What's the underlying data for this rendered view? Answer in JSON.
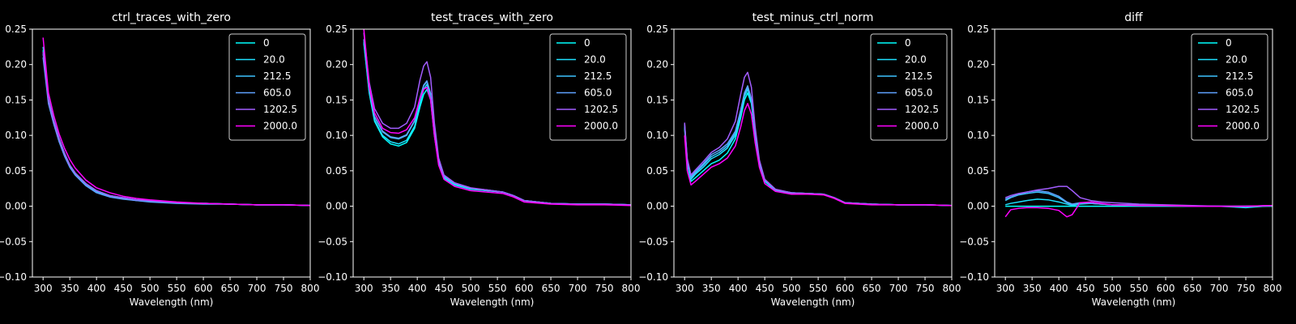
{
  "figure": {
    "background": "#000000",
    "foreground": "#ffffff",
    "series_colors": [
      "#00ffff",
      "#1ee1ff",
      "#3dc2ff",
      "#5ea1ff",
      "#a25dff",
      "#ff00ff"
    ]
  },
  "chart_data": [
    {
      "type": "line",
      "title": "ctrl_traces_with_zero",
      "xlabel": "Wavelength (nm)",
      "ylabel": "",
      "xlim": [
        280,
        800
      ],
      "ylim": [
        -0.1,
        0.25
      ],
      "xticks": [
        300,
        350,
        400,
        450,
        500,
        550,
        600,
        650,
        700,
        750,
        800
      ],
      "yticks": [
        -0.1,
        -0.05,
        0.0,
        0.05,
        0.1,
        0.15,
        0.2,
        0.25
      ],
      "ytick_labels": [
        "−0.10",
        "−0.05",
        "0.00",
        "0.05",
        "0.10",
        "0.15",
        "0.20",
        "0.25"
      ],
      "xtick_labels": [
        "300",
        "350",
        "400",
        "450",
        "500",
        "550",
        "600",
        "650",
        "700",
        "750",
        "800"
      ],
      "grid": false,
      "legend": "upper right",
      "x": [
        300,
        310,
        320,
        330,
        340,
        350,
        360,
        380,
        400,
        425,
        450,
        475,
        500,
        550,
        600,
        650,
        700,
        750,
        800
      ],
      "series": [
        {
          "name": "0",
          "values": [
            0.22,
            0.15,
            0.12,
            0.095,
            0.075,
            0.058,
            0.047,
            0.032,
            0.022,
            0.015,
            0.012,
            0.009,
            0.008,
            0.005,
            0.004,
            0.003,
            0.002,
            0.002,
            0.001
          ]
        },
        {
          "name": "20.0",
          "values": [
            0.225,
            0.152,
            0.121,
            0.096,
            0.075,
            0.058,
            0.047,
            0.031,
            0.021,
            0.014,
            0.011,
            0.009,
            0.007,
            0.005,
            0.004,
            0.003,
            0.002,
            0.002,
            0.001
          ]
        },
        {
          "name": "212.5",
          "values": [
            0.215,
            0.148,
            0.118,
            0.093,
            0.073,
            0.056,
            0.045,
            0.03,
            0.02,
            0.014,
            0.011,
            0.008,
            0.007,
            0.005,
            0.004,
            0.003,
            0.002,
            0.002,
            0.001
          ]
        },
        {
          "name": "605.0",
          "values": [
            0.21,
            0.145,
            0.116,
            0.091,
            0.071,
            0.055,
            0.044,
            0.029,
            0.019,
            0.013,
            0.01,
            0.008,
            0.006,
            0.004,
            0.003,
            0.003,
            0.002,
            0.002,
            0.001
          ]
        },
        {
          "name": "1202.5",
          "values": [
            0.218,
            0.15,
            0.12,
            0.095,
            0.075,
            0.058,
            0.047,
            0.032,
            0.022,
            0.015,
            0.012,
            0.009,
            0.008,
            0.005,
            0.004,
            0.003,
            0.002,
            0.002,
            0.001
          ]
        },
        {
          "name": "2000.0",
          "values": [
            0.238,
            0.16,
            0.128,
            0.102,
            0.082,
            0.066,
            0.054,
            0.037,
            0.026,
            0.019,
            0.014,
            0.011,
            0.009,
            0.006,
            0.004,
            0.003,
            0.002,
            0.002,
            0.001
          ]
        }
      ]
    },
    {
      "type": "line",
      "title": "test_traces_with_zero",
      "xlabel": "Wavelength (nm)",
      "ylabel": "",
      "xlim": [
        280,
        800
      ],
      "ylim": [
        -0.1,
        0.25
      ],
      "xticks": [
        300,
        350,
        400,
        450,
        500,
        550,
        600,
        650,
        700,
        750,
        800
      ],
      "yticks": [
        -0.1,
        -0.05,
        0.0,
        0.05,
        0.1,
        0.15,
        0.2,
        0.25
      ],
      "ytick_labels": [
        "−0.10",
        "−0.05",
        "0.00",
        "0.05",
        "0.10",
        "0.15",
        "0.20",
        "0.25"
      ],
      "xtick_labels": [
        "300",
        "350",
        "400",
        "450",
        "500",
        "550",
        "600",
        "650",
        "700",
        "750",
        "800"
      ],
      "grid": false,
      "legend": "upper right",
      "x": [
        300,
        310,
        320,
        335,
        350,
        365,
        380,
        395,
        405,
        412,
        418,
        425,
        432,
        440,
        450,
        470,
        500,
        530,
        560,
        580,
        600,
        650,
        700,
        750,
        800
      ],
      "series": [
        {
          "name": "0",
          "values": [
            0.23,
            0.16,
            0.12,
            0.098,
            0.088,
            0.085,
            0.09,
            0.11,
            0.14,
            0.158,
            0.165,
            0.15,
            0.1,
            0.06,
            0.04,
            0.03,
            0.024,
            0.022,
            0.02,
            0.015,
            0.008,
            0.004,
            0.003,
            0.003,
            0.002
          ]
        },
        {
          "name": "20.0",
          "values": [
            0.232,
            0.162,
            0.122,
            0.1,
            0.091,
            0.088,
            0.093,
            0.113,
            0.145,
            0.165,
            0.172,
            0.155,
            0.103,
            0.062,
            0.041,
            0.031,
            0.025,
            0.022,
            0.02,
            0.015,
            0.008,
            0.004,
            0.003,
            0.003,
            0.002
          ]
        },
        {
          "name": "212.5",
          "values": [
            0.235,
            0.165,
            0.126,
            0.105,
            0.097,
            0.095,
            0.1,
            0.12,
            0.152,
            0.17,
            0.176,
            0.158,
            0.105,
            0.063,
            0.042,
            0.032,
            0.025,
            0.023,
            0.02,
            0.015,
            0.008,
            0.004,
            0.003,
            0.003,
            0.002
          ]
        },
        {
          "name": "605.0",
          "values": [
            0.236,
            0.166,
            0.127,
            0.106,
            0.098,
            0.096,
            0.101,
            0.121,
            0.153,
            0.171,
            0.177,
            0.159,
            0.106,
            0.064,
            0.042,
            0.032,
            0.025,
            0.023,
            0.02,
            0.015,
            0.008,
            0.004,
            0.003,
            0.003,
            0.002
          ]
        },
        {
          "name": "1202.5",
          "values": [
            0.245,
            0.175,
            0.138,
            0.117,
            0.11,
            0.11,
            0.117,
            0.14,
            0.178,
            0.198,
            0.204,
            0.182,
            0.118,
            0.068,
            0.044,
            0.033,
            0.026,
            0.023,
            0.02,
            0.015,
            0.008,
            0.004,
            0.003,
            0.003,
            0.002
          ]
        },
        {
          "name": "2000.0",
          "values": [
            0.25,
            0.17,
            0.132,
            0.11,
            0.104,
            0.103,
            0.108,
            0.125,
            0.152,
            0.165,
            0.168,
            0.15,
            0.1,
            0.058,
            0.038,
            0.028,
            0.022,
            0.02,
            0.018,
            0.013,
            0.006,
            0.003,
            0.002,
            0.002,
            0.001
          ]
        }
      ]
    },
    {
      "type": "line",
      "title": "test_minus_ctrl_norm",
      "xlabel": "Wavelength (nm)",
      "ylabel": "",
      "xlim": [
        280,
        800
      ],
      "ylim": [
        -0.1,
        0.25
      ],
      "xticks": [
        300,
        350,
        400,
        450,
        500,
        550,
        600,
        650,
        700,
        750,
        800
      ],
      "yticks": [
        -0.1,
        -0.05,
        0.0,
        0.05,
        0.1,
        0.15,
        0.2,
        0.25
      ],
      "ytick_labels": [
        "−0.10",
        "−0.05",
        "0.00",
        "0.05",
        "0.10",
        "0.15",
        "0.20",
        "0.25"
      ],
      "xtick_labels": [
        "300",
        "350",
        "400",
        "450",
        "500",
        "550",
        "600",
        "650",
        "700",
        "750",
        "800"
      ],
      "grid": false,
      "legend": "upper right",
      "x": [
        300,
        305,
        312,
        320,
        335,
        350,
        365,
        380,
        395,
        405,
        412,
        418,
        425,
        432,
        440,
        450,
        470,
        500,
        530,
        560,
        580,
        600,
        650,
        700,
        750,
        800
      ],
      "series": [
        {
          "name": "0",
          "values": [
            0.11,
            0.06,
            0.035,
            0.04,
            0.05,
            0.06,
            0.065,
            0.075,
            0.095,
            0.125,
            0.15,
            0.16,
            0.145,
            0.1,
            0.06,
            0.035,
            0.022,
            0.018,
            0.018,
            0.017,
            0.012,
            0.005,
            0.003,
            0.002,
            0.002,
            0.001
          ]
        },
        {
          "name": "20.0",
          "values": [
            0.112,
            0.062,
            0.038,
            0.045,
            0.055,
            0.067,
            0.073,
            0.082,
            0.1,
            0.13,
            0.155,
            0.165,
            0.148,
            0.103,
            0.062,
            0.036,
            0.023,
            0.019,
            0.018,
            0.017,
            0.012,
            0.005,
            0.003,
            0.002,
            0.002,
            0.001
          ]
        },
        {
          "name": "212.5",
          "values": [
            0.115,
            0.064,
            0.04,
            0.047,
            0.058,
            0.07,
            0.076,
            0.085,
            0.103,
            0.133,
            0.158,
            0.168,
            0.15,
            0.104,
            0.063,
            0.037,
            0.023,
            0.019,
            0.018,
            0.017,
            0.012,
            0.005,
            0.003,
            0.002,
            0.002,
            0.001
          ]
        },
        {
          "name": "605.0",
          "values": [
            0.116,
            0.065,
            0.042,
            0.049,
            0.06,
            0.073,
            0.079,
            0.088,
            0.106,
            0.136,
            0.16,
            0.17,
            0.152,
            0.105,
            0.063,
            0.037,
            0.023,
            0.019,
            0.018,
            0.017,
            0.012,
            0.005,
            0.003,
            0.002,
            0.002,
            0.001
          ]
        },
        {
          "name": "1202.5",
          "values": [
            0.118,
            0.067,
            0.044,
            0.051,
            0.063,
            0.076,
            0.083,
            0.095,
            0.12,
            0.158,
            0.182,
            0.189,
            0.168,
            0.112,
            0.065,
            0.038,
            0.024,
            0.019,
            0.018,
            0.017,
            0.012,
            0.005,
            0.003,
            0.002,
            0.002,
            0.001
          ]
        },
        {
          "name": "2000.0",
          "values": [
            0.1,
            0.05,
            0.03,
            0.035,
            0.045,
            0.055,
            0.06,
            0.068,
            0.085,
            0.112,
            0.135,
            0.145,
            0.13,
            0.09,
            0.055,
            0.032,
            0.021,
            0.017,
            0.017,
            0.016,
            0.011,
            0.004,
            0.002,
            0.002,
            0.002,
            0.001
          ]
        }
      ]
    },
    {
      "type": "line",
      "title": "diff",
      "xlabel": "Wavelength (nm)",
      "ylabel": "",
      "xlim": [
        280,
        800
      ],
      "ylim": [
        -0.1,
        0.25
      ],
      "xticks": [
        300,
        350,
        400,
        450,
        500,
        550,
        600,
        650,
        700,
        750,
        800
      ],
      "yticks": [
        -0.1,
        -0.05,
        0.0,
        0.05,
        0.1,
        0.15,
        0.2,
        0.25
      ],
      "ytick_labels": [
        "−0.10",
        "−0.05",
        "0.00",
        "0.05",
        "0.10",
        "0.15",
        "0.20",
        "0.25"
      ],
      "xtick_labels": [
        "300",
        "350",
        "400",
        "450",
        "500",
        "550",
        "600",
        "650",
        "700",
        "750",
        "800"
      ],
      "grid": false,
      "legend": "upper right",
      "x": [
        300,
        310,
        325,
        340,
        360,
        380,
        400,
        415,
        425,
        440,
        460,
        480,
        500,
        550,
        600,
        650,
        700,
        750,
        800
      ],
      "series": [
        {
          "name": "0",
          "values": [
            0.0,
            0.0,
            0.0,
            0.0,
            0.0,
            0.0,
            0.0,
            0.0,
            0.0,
            0.0,
            0.0,
            0.0,
            0.0,
            0.0,
            0.0,
            0.0,
            0.0,
            0.0,
            0.0
          ]
        },
        {
          "name": "20.0",
          "values": [
            0.002,
            0.004,
            0.006,
            0.008,
            0.01,
            0.009,
            0.006,
            0.003,
            0.001,
            0.003,
            0.004,
            0.003,
            0.002,
            0.002,
            0.001,
            0.0,
            0.0,
            -0.002,
            0.001
          ]
        },
        {
          "name": "212.5",
          "values": [
            0.008,
            0.012,
            0.016,
            0.018,
            0.02,
            0.018,
            0.012,
            0.005,
            0.002,
            0.004,
            0.004,
            0.003,
            0.002,
            0.002,
            0.001,
            0.0,
            0.0,
            0.0,
            0.001
          ]
        },
        {
          "name": "605.0",
          "values": [
            0.01,
            0.013,
            0.017,
            0.02,
            0.022,
            0.02,
            0.014,
            0.006,
            0.003,
            0.005,
            0.004,
            0.003,
            0.002,
            0.002,
            0.001,
            0.0,
            0.0,
            0.0,
            0.001
          ]
        },
        {
          "name": "1202.5",
          "values": [
            0.012,
            0.015,
            0.018,
            0.02,
            0.023,
            0.025,
            0.028,
            0.028,
            0.022,
            0.012,
            0.008,
            0.006,
            0.005,
            0.003,
            0.002,
            0.001,
            0.0,
            0.0,
            0.001
          ]
        },
        {
          "name": "2000.0",
          "values": [
            -0.015,
            -0.005,
            -0.003,
            -0.002,
            -0.002,
            -0.003,
            -0.006,
            -0.015,
            -0.012,
            0.005,
            0.006,
            0.004,
            0.002,
            0.001,
            0.001,
            0.0,
            0.0,
            0.0,
            0.001
          ]
        }
      ]
    }
  ]
}
